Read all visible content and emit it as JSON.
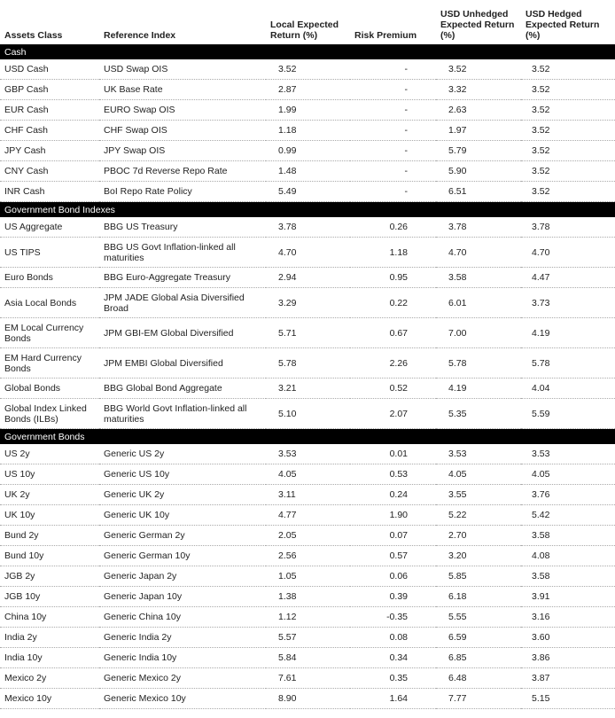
{
  "table": {
    "columns": [
      "Assets Class",
      "Reference Index",
      "Local Expected Return (%)",
      "Risk Premium",
      "USD Unhedged Expected Return (%)",
      "USD Hedged Expected Return (%)"
    ],
    "sections": [
      {
        "title": "Cash",
        "rows": [
          [
            "USD Cash",
            "USD Swap OIS",
            "3.52",
            "-",
            "3.52",
            "3.52"
          ],
          [
            "GBP Cash",
            "UK Base Rate",
            "2.87",
            "-",
            "3.32",
            "3.52"
          ],
          [
            "EUR Cash",
            "EURO Swap OIS",
            "1.99",
            "-",
            "2.63",
            "3.52"
          ],
          [
            "CHF Cash",
            "CHF Swap OIS",
            "1.18",
            "-",
            "1.97",
            "3.52"
          ],
          [
            "JPY Cash",
            "JPY Swap OIS",
            "0.99",
            "-",
            "5.79",
            "3.52"
          ],
          [
            "CNY Cash",
            "PBOC 7d Reverse Repo Rate",
            "1.48",
            "-",
            "5.90",
            "3.52"
          ],
          [
            "INR Cash",
            "BoI Repo Rate Policy",
            "5.49",
            "-",
            "6.51",
            "3.52"
          ]
        ]
      },
      {
        "title": "Government Bond Indexes",
        "rows": [
          [
            "US Aggregate",
            "BBG US Treasury",
            "3.78",
            "0.26",
            "3.78",
            "3.78"
          ],
          [
            "US TIPS",
            "BBG US Govt Inflation-linked all maturities",
            "4.70",
            "1.18",
            "4.70",
            "4.70"
          ],
          [
            "Euro Bonds",
            "BBG Euro-Aggregate Treasury",
            "2.94",
            "0.95",
            "3.58",
            "4.47"
          ],
          [
            "Asia Local Bonds",
            "JPM JADE Global Asia Diversified Broad",
            "3.29",
            "0.22",
            "6.01",
            "3.73"
          ],
          [
            "EM Local Currency Bonds",
            "JPM GBI-EM Global Diversified",
            "5.71",
            "0.67",
            "7.00",
            "4.19"
          ],
          [
            "EM Hard Currency Bonds",
            "JPM EMBI Global Diversified",
            "5.78",
            "2.26",
            "5.78",
            "5.78"
          ],
          [
            "Global Bonds",
            "BBG Global Bond Aggregate",
            "3.21",
            "0.52",
            "4.19",
            "4.04"
          ],
          [
            "Global Index Linked Bonds (ILBs)",
            "BBG World Govt Inflation-linked all maturities",
            "5.10",
            "2.07",
            "5.35",
            "5.59"
          ]
        ]
      },
      {
        "title": "Government Bonds",
        "rows": [
          [
            "US 2y",
            "Generic US 2y",
            "3.53",
            "0.01",
            "3.53",
            "3.53"
          ],
          [
            "US 10y",
            "Generic US 10y",
            "4.05",
            "0.53",
            "4.05",
            "4.05"
          ],
          [
            "UK 2y",
            "Generic UK 2y",
            "3.11",
            "0.24",
            "3.55",
            "3.76"
          ],
          [
            "UK 10y",
            "Generic UK 10y",
            "4.77",
            "1.90",
            "5.22",
            "5.42"
          ],
          [
            "Bund 2y",
            "Generic German 2y",
            "2.05",
            "0.07",
            "2.70",
            "3.58"
          ],
          [
            "Bund 10y",
            "Generic German 10y",
            "2.56",
            "0.57",
            "3.20",
            "4.08"
          ],
          [
            "JGB 2y",
            "Generic Japan 2y",
            "1.05",
            "0.06",
            "5.85",
            "3.58"
          ],
          [
            "JGB 10y",
            "Generic Japan 10y",
            "1.38",
            "0.39",
            "6.18",
            "3.91"
          ],
          [
            "China 10y",
            "Generic China 10y",
            "1.12",
            "-0.35",
            "5.55",
            "3.16"
          ],
          [
            "India 2y",
            "Generic India 2y",
            "5.57",
            "0.08",
            "6.59",
            "3.60"
          ],
          [
            "India 10y",
            "Generic India 10y",
            "5.84",
            "0.34",
            "6.85",
            "3.86"
          ],
          [
            "Mexico 2y",
            "Generic Mexico 2y",
            "7.61",
            "0.35",
            "6.48",
            "3.87"
          ],
          [
            "Mexico 10y",
            "Generic Mexico 10y",
            "8.90",
            "1.64",
            "7.77",
            "5.15"
          ]
        ]
      }
    ]
  }
}
